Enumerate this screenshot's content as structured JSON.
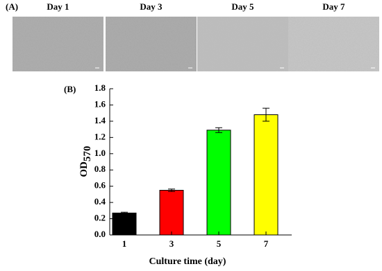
{
  "panel_a": {
    "label": "(A)",
    "images": [
      {
        "label": "Day 1"
      },
      {
        "label": "Day 3"
      },
      {
        "label": "Day 5"
      },
      {
        "label": "Day 7"
      }
    ]
  },
  "chart_data": {
    "type": "bar",
    "panel_label": "(B)",
    "categories": [
      "1",
      "3",
      "5",
      "7"
    ],
    "values": [
      0.27,
      0.55,
      1.29,
      1.48
    ],
    "errors": [
      0.01,
      0.015,
      0.03,
      0.08
    ],
    "colors": [
      "#000000",
      "#ff0000",
      "#00ff00",
      "#ffff00"
    ],
    "ylabel": "OD",
    "ylabel_subscript": "570",
    "xlabel": "Culture time (day)",
    "ylim": [
      0,
      1.8
    ],
    "yticks": [
      {
        "value": 0,
        "label": "0.0"
      },
      0.2,
      0.4,
      0.6,
      0.8,
      {
        "value": 1,
        "label": "1.0"
      },
      1.2,
      1.4,
      1.6,
      1.8
    ]
  }
}
